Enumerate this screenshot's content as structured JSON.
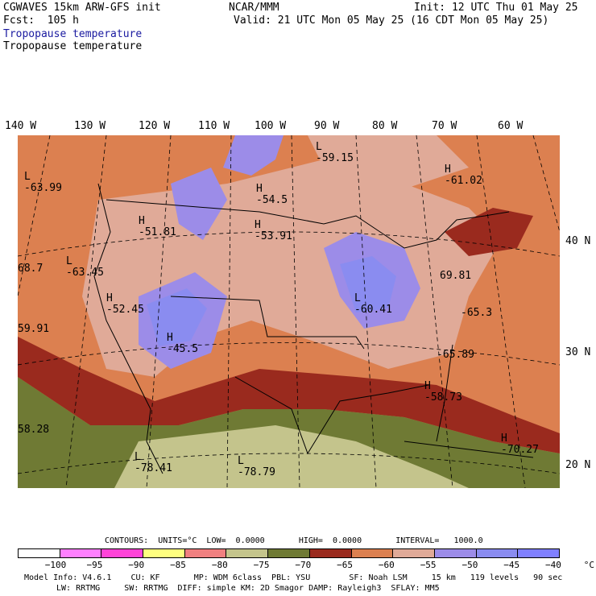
{
  "header": {
    "model": "CGWAVES 15km ARW-GFS init",
    "fcst": "Fcst:  105 h",
    "field1": "Tropopause temperature",
    "field2": "Tropopause temperature",
    "center": "NCAR/MMM",
    "init": "Init: 12 UTC Thu 01 May 25",
    "valid": "Valid: 21 UTC Mon 05 May 25 (16 CDT Mon 05 May 25)"
  },
  "lon_labels": [
    "140 W",
    "130 W",
    "120 W",
    "110 W",
    "100 W",
    "90 W",
    "80 W",
    "70 W",
    "60 W"
  ],
  "lat_labels": [
    "40 N",
    "30 N",
    "20 N"
  ],
  "pressure_labels": [
    {
      "sym": "L",
      "val": "-59.15"
    },
    {
      "sym": "L",
      "val": "-63.99"
    },
    {
      "sym": "H",
      "val": "-61.02"
    },
    {
      "sym": "H",
      "val": "-54.5"
    },
    {
      "sym": "H",
      "val": "-51.81"
    },
    {
      "sym": "H",
      "val": "-53.91"
    },
    {
      "sym": "L",
      "val": "-63.45"
    },
    {
      "sym": "",
      "val": "68.7"
    },
    {
      "sym": "H",
      "val": "-52.45"
    },
    {
      "sym": "L",
      "val": "-60.41"
    },
    {
      "sym": "",
      "val": "69.81"
    },
    {
      "sym": "",
      "val": "-65.3"
    },
    {
      "sym": "",
      "val": "59.91"
    },
    {
      "sym": "H",
      "val": "-45.5"
    },
    {
      "sym": "",
      "val": "-65.89"
    },
    {
      "sym": "H",
      "val": "-58.73"
    },
    {
      "sym": "",
      "val": "58.28"
    },
    {
      "sym": "H",
      "val": "-70.27"
    },
    {
      "sym": "L",
      "val": "-78.41"
    },
    {
      "sym": "L",
      "val": "-78.79"
    }
  ],
  "contours_line": "CONTOURS:  UNITS=°C  LOW=  0.0000       HIGH=  0.0000       INTERVAL=   1000.0",
  "colorbar": {
    "colors": [
      "#ffffff",
      "#ff80ff",
      "#ff44d8",
      "#ffff80",
      "#f08080",
      "#c4c48c",
      "#6f7a34",
      "#9a2a1e",
      "#dc8050",
      "#e0aa98",
      "#9c8ce8",
      "#8a8cf0",
      "#8080ff"
    ],
    "labels": [
      "−100",
      "−95",
      "−90",
      "−85",
      "−80",
      "−75",
      "−70",
      "−65",
      "−60",
      "−55",
      "−50",
      "−45",
      "−40",
      "°C"
    ]
  },
  "footer": {
    "line1": "Model Info: V4.6.1    CU: KF       MP: WDM 6class  PBL: YSU        SF: Noah LSM     15 km   119 levels   90 sec",
    "line2": "LW: RRTMG     SW: RRTMG  DIFF: simple KM: 2D Smagor DAMP: Rayleigh3  SFLAY: MM5"
  }
}
